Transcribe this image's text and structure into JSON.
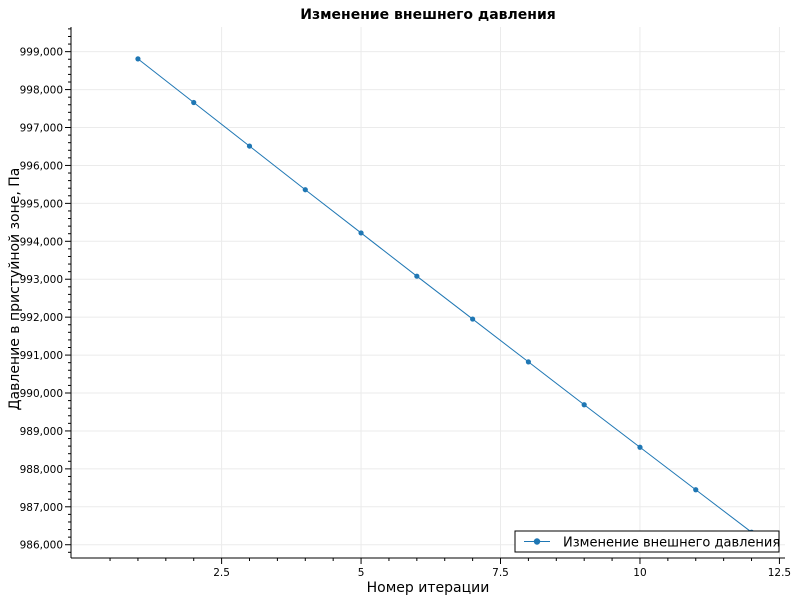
{
  "chart_data": {
    "type": "line",
    "title": "Изменение внешнего давления",
    "xlabel": "Номер итерации",
    "ylabel": "Давление в пристуйной зоне, Па",
    "xlim": [
      -0.2,
      12.6
    ],
    "ylim": [
      985650,
      999650
    ],
    "x_ticks": [
      {
        "value": 2.5,
        "label": "2.5"
      },
      {
        "value": 5,
        "label": "5"
      },
      {
        "value": 7.5,
        "label": "7.5"
      },
      {
        "value": 10,
        "label": "10"
      },
      {
        "value": 12.5,
        "label": "12.5"
      }
    ],
    "y_ticks": [
      {
        "value": 986000,
        "label": "986,000"
      },
      {
        "value": 987000,
        "label": "987,000"
      },
      {
        "value": 988000,
        "label": "988,000"
      },
      {
        "value": 989000,
        "label": "989,000"
      },
      {
        "value": 990000,
        "label": "990,000"
      },
      {
        "value": 991000,
        "label": "991,000"
      },
      {
        "value": 992000,
        "label": "992,000"
      },
      {
        "value": 993000,
        "label": "993,000"
      },
      {
        "value": 994000,
        "label": "994,000"
      },
      {
        "value": 995000,
        "label": "995,000"
      },
      {
        "value": 996000,
        "label": "996,000"
      },
      {
        "value": 997000,
        "label": "997,000"
      },
      {
        "value": 998000,
        "label": "998,000"
      },
      {
        "value": 999000,
        "label": "999,000"
      }
    ],
    "grid": true,
    "legend_position": "bottom-right",
    "series": [
      {
        "name": "Изменение внешнего давления",
        "color": "#1f77b4",
        "x": [
          1,
          2,
          3,
          4,
          5,
          6,
          7,
          8,
          9,
          10,
          11,
          12
        ],
        "y": [
          998810,
          997660,
          996510,
          995360,
          994220,
          993080,
          991950,
          990820,
          989690,
          988570,
          987450,
          986330
        ]
      }
    ]
  }
}
